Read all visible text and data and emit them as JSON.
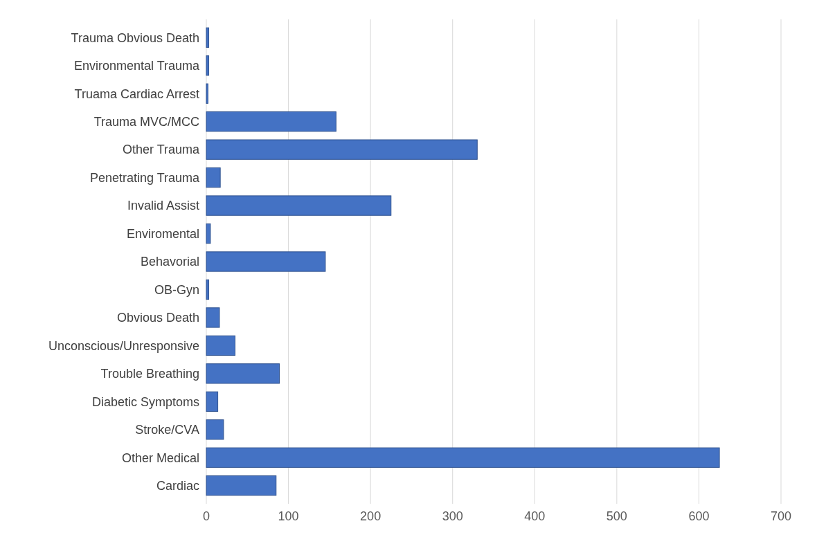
{
  "chart_data": {
    "type": "bar",
    "orientation": "horizontal",
    "categories": [
      "Trauma Obvious Death",
      "Environmental Trauma",
      "Truama Cardiac Arrest",
      "Trauma MVC/MCC",
      "Other Trauma",
      "Penetrating Trauma",
      "Invalid Assist",
      "Enviromental",
      "Behavorial",
      "OB-Gyn",
      "Obvious Death",
      "Unconscious/Unresponsive",
      "Trouble Breathing",
      "Diabetic Symptoms",
      "Stroke/CVA",
      "Other Medical",
      "Cardiac"
    ],
    "values": [
      3,
      3,
      2,
      158,
      330,
      17,
      225,
      5,
      145,
      3,
      16,
      35,
      89,
      14,
      21,
      625,
      85
    ],
    "color": "#4472c4",
    "xlim": [
      0,
      700
    ],
    "xticks": [
      0,
      100,
      200,
      300,
      400,
      500,
      600,
      700
    ],
    "grid": "x"
  }
}
